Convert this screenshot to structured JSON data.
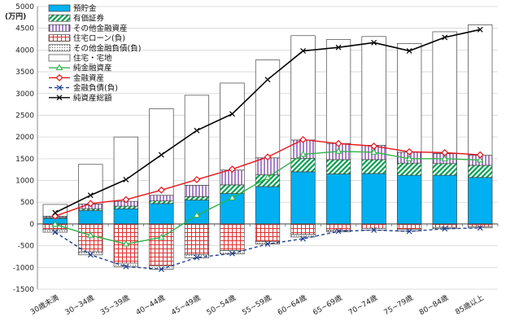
{
  "chart_data": {
    "type": "bar",
    "unit_label": "(万円)",
    "ylim": [
      -1500,
      5000
    ],
    "ystep": 500,
    "grid": true,
    "legend_position": "top-left",
    "categories": [
      "30歳未満",
      "30~34歳",
      "35~39歳",
      "40~44歳",
      "45~49歳",
      "50~54歳",
      "55~59歳",
      "60~64歳",
      "65~69歳",
      "70~74歳",
      "75~79歳",
      "80~84歳",
      "85歳以上"
    ],
    "series": [
      {
        "name": "預貯金",
        "kind": "bar",
        "color": "#00b0f0",
        "pattern": "solid",
        "values": [
          130,
          310,
          350,
          470,
          550,
          700,
          860,
          1200,
          1150,
          1160,
          1120,
          1120,
          1070
        ]
      },
      {
        "name": "有価証券",
        "kind": "bar",
        "color": "#00a050",
        "pattern": "diagonal",
        "values": [
          20,
          40,
          60,
          60,
          80,
          200,
          270,
          310,
          330,
          320,
          280,
          270,
          280
        ]
      },
      {
        "name": "その他金融資産",
        "kind": "bar",
        "color": "#7030a0",
        "pattern": "vertical",
        "values": [
          30,
          110,
          110,
          130,
          260,
          340,
          390,
          420,
          370,
          330,
          250,
          230,
          230
        ]
      },
      {
        "name": "住宅ローン(負)",
        "kind": "bar",
        "color": "#e03030",
        "pattern": "grid",
        "values": [
          -130,
          -640,
          -900,
          -960,
          -700,
          -610,
          -400,
          -240,
          -140,
          -100,
          -120,
          -80,
          -60
        ]
      },
      {
        "name": "その他金融負債(負)",
        "kind": "bar",
        "color": "#999999",
        "pattern": "dots",
        "values": [
          -60,
          -70,
          -80,
          -80,
          -80,
          -80,
          -60,
          -60,
          -40,
          -40,
          -40,
          -30,
          -30
        ]
      },
      {
        "name": "住宅・宅地",
        "kind": "bar",
        "color": "#ffffff",
        "pattern": "solid",
        "values": [
          270,
          910,
          1480,
          1990,
          2070,
          2000,
          2250,
          2400,
          2390,
          2500,
          2500,
          2800,
          3000
        ]
      },
      {
        "name": "純金融資産",
        "kind": "line",
        "color": "#2db34a",
        "marker": "triangle",
        "values": [
          -10,
          -260,
          -460,
          -310,
          200,
          600,
          1070,
          1600,
          1670,
          1650,
          1500,
          1500,
          1470
        ]
      },
      {
        "name": "金融資産",
        "kind": "line",
        "color": "#e8141c",
        "marker": "diamond",
        "values": [
          180,
          470,
          560,
          780,
          1020,
          1260,
          1540,
          1940,
          1850,
          1790,
          1660,
          1640,
          1590
        ]
      },
      {
        "name": "金融負債(負)",
        "kind": "line",
        "color": "#1f3f8f",
        "marker": "x",
        "dash": true,
        "values": [
          -190,
          -710,
          -980,
          -1040,
          -770,
          -680,
          -460,
          -340,
          -170,
          -140,
          -170,
          -110,
          -90
        ]
      },
      {
        "name": "純資産総額",
        "kind": "line",
        "color": "#000000",
        "marker": "x",
        "values": [
          260,
          660,
          1020,
          1590,
          2150,
          2530,
          3320,
          3980,
          4060,
          4170,
          3980,
          4290,
          4470
        ]
      }
    ]
  }
}
